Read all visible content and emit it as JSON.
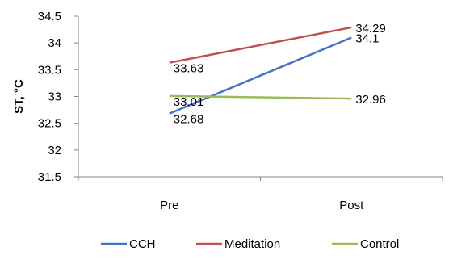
{
  "chart_data": {
    "type": "line",
    "title": "",
    "xlabel": "",
    "ylabel": "ST, °C",
    "categories": [
      "Pre",
      "Post"
    ],
    "ylim": [
      31.5,
      34.5
    ],
    "yticks": [
      "31.5",
      "32",
      "32.5",
      "33",
      "33.5",
      "34",
      "34.5"
    ],
    "grid": false,
    "legend_position": "bottom",
    "series": [
      {
        "name": "CCH",
        "values": [
          32.68,
          34.1
        ],
        "labels": [
          "32.68",
          "34.1"
        ],
        "color": "#4472C4"
      },
      {
        "name": "Meditation",
        "values": [
          33.63,
          34.29
        ],
        "labels": [
          "33.63",
          "34.29"
        ],
        "color": "#C0504D"
      },
      {
        "name": "Control",
        "values": [
          33.01,
          32.96
        ],
        "labels": [
          "33.01",
          "32.96"
        ],
        "color": "#9BBB59"
      }
    ]
  }
}
